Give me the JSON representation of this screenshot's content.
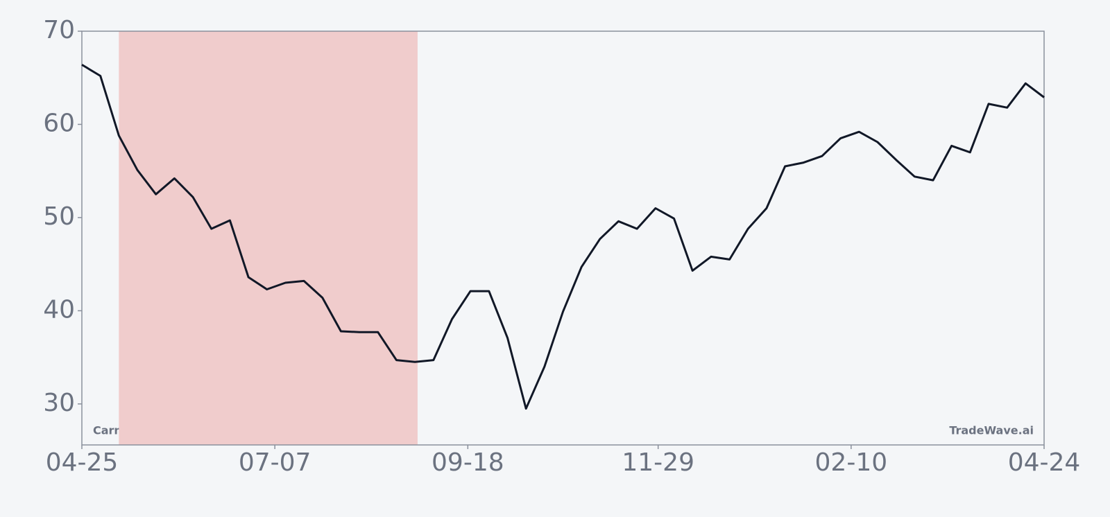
{
  "chart_data": {
    "type": "line",
    "x": [
      "04-25",
      "05-02",
      "05-09",
      "05-16",
      "05-23",
      "05-30",
      "06-06",
      "06-13",
      "06-20",
      "06-27",
      "07-04",
      "07-11",
      "07-18",
      "07-25",
      "08-01",
      "08-08",
      "08-15",
      "08-22",
      "08-29",
      "09-05",
      "09-12",
      "09-19",
      "09-26",
      "10-03",
      "10-10",
      "10-17",
      "10-24",
      "10-31",
      "11-07",
      "11-14",
      "11-21",
      "11-28",
      "12-05",
      "12-12",
      "12-19",
      "12-26",
      "01-02",
      "01-09",
      "01-16",
      "01-23",
      "01-30",
      "02-06",
      "02-13",
      "02-20",
      "02-27",
      "03-06",
      "03-13",
      "03-20",
      "03-27",
      "04-03",
      "04-10",
      "04-17",
      "04-24"
    ],
    "series": [
      {
        "name": "Carnival",
        "color": "#111827",
        "values": [
          66.4,
          65.2,
          58.8,
          55.1,
          52.5,
          54.2,
          52.2,
          48.8,
          49.7,
          43.6,
          42.3,
          43.0,
          43.2,
          41.4,
          37.8,
          37.7,
          37.7,
          34.7,
          34.5,
          34.7,
          39.1,
          42.1,
          42.1,
          37.1,
          29.5,
          34.0,
          39.9,
          44.7,
          47.7,
          49.6,
          48.8,
          51.0,
          49.9,
          44.3,
          45.8,
          45.5,
          48.8,
          51.0,
          55.5,
          55.9,
          56.6,
          58.5,
          59.2,
          58.1,
          56.2,
          54.4,
          54.0,
          57.7,
          57.0,
          62.2,
          61.8,
          64.4,
          62.9
        ]
      }
    ],
    "xlim": [
      "04-25",
      "04-24"
    ],
    "xticks": [
      "04-25",
      "07-07",
      "09-18",
      "11-29",
      "02-10",
      "04-24"
    ],
    "ylim": [
      25.6,
      70
    ],
    "yticks": [
      30,
      40,
      50,
      60,
      70
    ],
    "highlight": {
      "start": "05-09",
      "end": "08-30",
      "color": "#f0cccc"
    },
    "watermark": "TradeWave.ai"
  }
}
